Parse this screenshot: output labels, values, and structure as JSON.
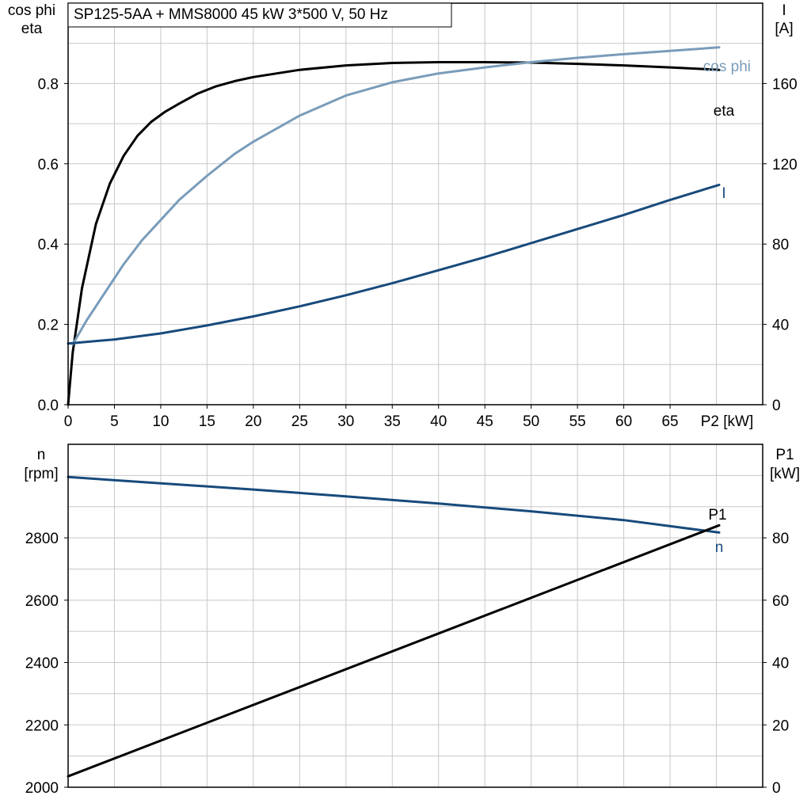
{
  "chart_data": [
    {
      "type": "line",
      "title": "SP125-5AA + MMS8000   45 kW   3*500 V, 50 Hz",
      "xlabel": "P2 [kW]",
      "ylabel_left": [
        "cos phi",
        "eta"
      ],
      "ylabel_right": [
        "I",
        "[A]"
      ],
      "xlim": [
        0,
        75
      ],
      "ylim_left": [
        0,
        1.0
      ],
      "ylim_right": [
        0,
        200
      ],
      "grid": true,
      "x_ticks": [
        0,
        5,
        10,
        15,
        20,
        25,
        30,
        35,
        40,
        45,
        50,
        55,
        60,
        65
      ],
      "x_tick_labels": [
        "0",
        "5",
        "10",
        "15",
        "20",
        "25",
        "30",
        "35",
        "40",
        "45",
        "50",
        "55",
        "60",
        "65"
      ],
      "y_left_ticks": [
        0,
        0.2,
        0.4,
        0.6,
        0.8
      ],
      "y_left_tick_labels": [
        "0.0",
        "0.2",
        "0.4",
        "0.6",
        "0.8"
      ],
      "y_right_ticks": [
        0,
        40,
        80,
        120,
        160
      ],
      "y_right_tick_labels": [
        "0",
        "40",
        "80",
        "120",
        "160"
      ],
      "series": [
        {
          "name": "eta",
          "axis": "left",
          "color": "#000000",
          "x": [
            0,
            0.5,
            1.5,
            3,
            4.5,
            6,
            7.5,
            9,
            10.5,
            12,
            14,
            16,
            18,
            20,
            25,
            30,
            35,
            40,
            45,
            50,
            55,
            60,
            65,
            70.3
          ],
          "y": [
            0.0,
            0.13,
            0.29,
            0.45,
            0.55,
            0.62,
            0.67,
            0.705,
            0.73,
            0.75,
            0.775,
            0.793,
            0.806,
            0.816,
            0.834,
            0.845,
            0.851,
            0.853,
            0.853,
            0.852,
            0.849,
            0.845,
            0.84,
            0.834
          ]
        },
        {
          "name": "cos phi",
          "axis": "left",
          "color": "#7a9cba",
          "x": [
            0.5,
            2,
            4,
            6,
            8,
            10,
            12,
            15,
            18,
            20,
            25,
            30,
            35,
            40,
            45,
            50,
            55,
            60,
            65,
            70.3
          ],
          "y": [
            0.15,
            0.21,
            0.28,
            0.35,
            0.41,
            0.46,
            0.51,
            0.57,
            0.625,
            0.655,
            0.72,
            0.77,
            0.803,
            0.825,
            0.84,
            0.853,
            0.864,
            0.873,
            0.881,
            0.89
          ]
        },
        {
          "name": "I",
          "axis": "right",
          "color": "#174a7c",
          "x": [
            0,
            5,
            10,
            15,
            20,
            25,
            30,
            35,
            40,
            45,
            50,
            55,
            60,
            65,
            70.3
          ],
          "y": [
            30.5,
            32.5,
            35.5,
            39.5,
            44,
            49,
            54.5,
            60.5,
            67,
            73.5,
            80.5,
            87.5,
            94.5,
            102,
            109.5
          ]
        }
      ]
    },
    {
      "type": "line",
      "xlim": [
        0,
        75
      ],
      "ylabel_left": [
        "n",
        "[rpm]"
      ],
      "ylabel_right": [
        "P1",
        "[kW]"
      ],
      "ylim_left": [
        2000,
        3100
      ],
      "ylim_right": [
        0,
        110
      ],
      "grid": true,
      "y_left_ticks": [
        2000,
        2200,
        2400,
        2600,
        2800
      ],
      "y_left_tick_labels": [
        "2000",
        "2200",
        "2400",
        "2600",
        "2800"
      ],
      "y_right_ticks": [
        0,
        20,
        40,
        60,
        80
      ],
      "y_right_tick_labels": [
        "0",
        "20",
        "40",
        "60",
        "80"
      ],
      "series": [
        {
          "name": "n",
          "axis": "left",
          "color": "#174a7c",
          "x": [
            0,
            10,
            20,
            30,
            40,
            50,
            60,
            70.3
          ],
          "y": [
            2995,
            2975,
            2955,
            2933,
            2910,
            2885,
            2857,
            2817
          ]
        },
        {
          "name": "P1",
          "axis": "right",
          "color": "#000000",
          "x": [
            0,
            70.3
          ],
          "y": [
            3.5,
            84
          ]
        }
      ]
    }
  ]
}
